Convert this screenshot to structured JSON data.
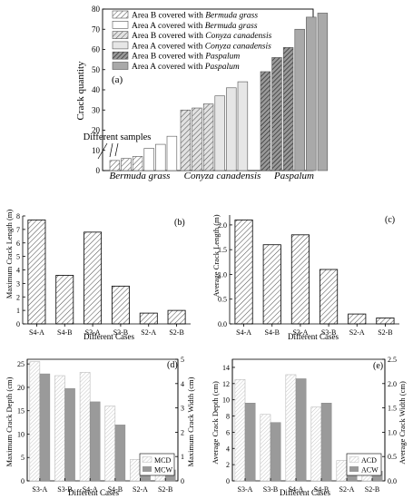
{
  "chart_data": [
    {
      "panel": "(a)",
      "type": "bar",
      "ylabel": "Crack quantity",
      "ylim": [
        0,
        80
      ],
      "yticks": [
        0,
        10,
        20,
        30,
        40,
        50,
        60,
        70,
        80
      ],
      "group_labels": [
        "Bermuda grass",
        "Conyza canadensis",
        "Paspalum"
      ],
      "annotation": "Different samples",
      "legend": {
        "placement": "top-left",
        "entries": [
          {
            "prefix": "Area B covered with ",
            "species": "Bermuda grass",
            "style": "hatch-white"
          },
          {
            "prefix": "Area A covered with ",
            "species": "Bermuda grass",
            "style": "white"
          },
          {
            "prefix": "Area B covered with ",
            "species": "Conyza canadensis",
            "style": "hatch-light"
          },
          {
            "prefix": "Area A covered with ",
            "species": "Conyza canadensis",
            "style": "light"
          },
          {
            "prefix": "Area B covered with ",
            "species": "Paspalum",
            "style": "hatch-dark"
          },
          {
            "prefix": "Area A covered with ",
            "species": "Paspalum",
            "style": "dark"
          }
        ]
      },
      "series": [
        {
          "name": "Area B covered with Bermuda grass",
          "values": [
            5,
            6,
            7
          ]
        },
        {
          "name": "Area A covered with Bermuda grass",
          "values": [
            11,
            13,
            17
          ]
        },
        {
          "name": "Area B covered with Conyza canadensis",
          "values": [
            30,
            31,
            33
          ]
        },
        {
          "name": "Area A covered with Conyza canadensis",
          "values": [
            37,
            41,
            44
          ]
        },
        {
          "name": "Area B covered with Paspalum",
          "values": [
            49,
            56,
            61
          ]
        },
        {
          "name": "Area A covered with Paspalum",
          "values": [
            70,
            76,
            78
          ]
        }
      ]
    },
    {
      "panel": "(b)",
      "type": "bar",
      "categories": [
        "S4-A",
        "S4-B",
        "S3-A",
        "S3-B",
        "S2-A",
        "S2-B"
      ],
      "values": [
        7.7,
        3.6,
        6.8,
        2.8,
        0.8,
        1.0
      ],
      "xlabel": "Different Cases",
      "ylabel": "Maximum Crack Length (m)",
      "ylim": [
        0,
        8
      ],
      "yticks": [
        0,
        1,
        2,
        3,
        4,
        5,
        6,
        7,
        8
      ]
    },
    {
      "panel": "(c)",
      "type": "bar",
      "categories": [
        "S4-A",
        "S4-B",
        "S3-A",
        "S3-B",
        "S2-A",
        "S2-B"
      ],
      "values": [
        2.1,
        1.6,
        1.8,
        1.1,
        0.2,
        0.12
      ],
      "xlabel": "Different Cases",
      "ylabel": "Average Crack Length (m)",
      "ylim": [
        0,
        2.2
      ],
      "yticks": [
        "0.0",
        "0.5",
        "1.0",
        "1.5",
        "2.0"
      ]
    },
    {
      "panel": "(d)",
      "type": "bar",
      "categories": [
        "S3-A",
        "S3-B",
        "S4-A",
        "S4-B",
        "S2-A",
        "S2-B"
      ],
      "xlabel": "Different Cases",
      "ylabel": "Maximum Crack Depth (cm)",
      "y2label": "Maximum Crack Width (cm)",
      "ylim": [
        0,
        26
      ],
      "y2lim": [
        0,
        5
      ],
      "yticks": [
        0,
        5,
        10,
        15,
        20,
        25
      ],
      "y2ticks": [
        0,
        1,
        2,
        3,
        4,
        5
      ],
      "legend": {
        "placement": "bottom-right",
        "entries": [
          "MCD",
          "MCW"
        ]
      },
      "series": [
        {
          "name": "MCD",
          "axis": "left",
          "values": [
            25.5,
            22.5,
            23.2,
            16.0,
            4.6,
            4.0
          ]
        },
        {
          "name": "MCW",
          "axis": "right",
          "values": [
            4.4,
            3.8,
            3.25,
            2.3,
            0.85,
            0.45
          ]
        }
      ]
    },
    {
      "panel": "(e)",
      "type": "bar",
      "categories": [
        "S3-A",
        "S3-B",
        "S4-A",
        "S4-B",
        "S2-A",
        "S2-B"
      ],
      "xlabel": "Different Cases",
      "ylabel": "Average Crack Depth (cm)",
      "y2label": "Average Crack Width (cm)",
      "ylim": [
        0,
        15
      ],
      "y2lim": [
        0,
        2.5
      ],
      "yticks": [
        0,
        2,
        4,
        6,
        8,
        10,
        12,
        14
      ],
      "y2ticks": [
        "0.0",
        "0.5",
        "1.0",
        "1.5",
        "2.0",
        "2.5"
      ],
      "legend": {
        "placement": "bottom-right",
        "entries": [
          "ACD",
          "ACW"
        ]
      },
      "series": [
        {
          "name": "ACD",
          "axis": "left",
          "values": [
            12.5,
            8.2,
            13.1,
            9.1,
            2.5,
            1.8
          ]
        },
        {
          "name": "ACW",
          "axis": "right",
          "values": [
            1.6,
            1.2,
            2.1,
            1.6,
            0.3,
            0.2
          ]
        }
      ]
    }
  ]
}
